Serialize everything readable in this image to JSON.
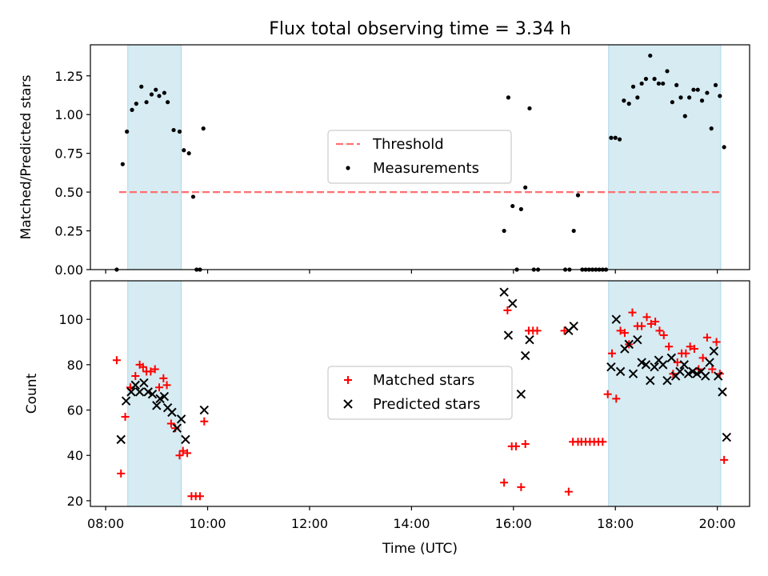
{
  "chart_data": [
    {
      "type": "scatter",
      "title": "Flux total observing time = 3.34 h",
      "xlabel": "",
      "ylabel": "Matched/Predicted stars",
      "xlim": [
        "07:42",
        "20:38"
      ],
      "ylim": [
        0,
        1.45
      ],
      "yticks": [
        0.0,
        0.25,
        0.5,
        0.75,
        1.0,
        1.25
      ],
      "ytick_labels": [
        "0.00",
        "0.25",
        "0.50",
        "0.75",
        "1.00",
        "1.25"
      ],
      "shaded_intervals": [
        [
          "08:26",
          "09:29"
        ],
        [
          "17:52",
          "20:04"
        ]
      ],
      "threshold": {
        "name": "Threshold",
        "value": 0.5,
        "color": "#ff7070"
      },
      "legend": {
        "position": "center",
        "entries": [
          "Threshold",
          "Measurements"
        ]
      },
      "series": [
        {
          "name": "Measurements",
          "marker": "dot",
          "color": "#000000",
          "points": [
            [
              "08:13",
              0.0
            ],
            [
              "08:20",
              0.68
            ],
            [
              "08:25",
              0.89
            ],
            [
              "08:31",
              1.03
            ],
            [
              "08:36",
              1.07
            ],
            [
              "08:42",
              1.18
            ],
            [
              "08:48",
              1.08
            ],
            [
              "08:54",
              1.13
            ],
            [
              "08:59",
              1.16
            ],
            [
              "09:03",
              1.12
            ],
            [
              "09:09",
              1.14
            ],
            [
              "09:13",
              1.08
            ],
            [
              "09:20",
              0.9
            ],
            [
              "09:27",
              0.89
            ],
            [
              "09:32",
              0.77
            ],
            [
              "09:38",
              0.75
            ],
            [
              "09:43",
              0.47
            ],
            [
              "09:47",
              0.0
            ],
            [
              "09:51",
              0.0
            ],
            [
              "09:55",
              0.91
            ],
            [
              "15:49",
              0.25
            ],
            [
              "15:54",
              1.11
            ],
            [
              "15:59",
              0.41
            ],
            [
              "16:04",
              0.0
            ],
            [
              "16:09",
              0.39
            ],
            [
              "16:14",
              0.53
            ],
            [
              "16:19",
              1.04
            ],
            [
              "16:24",
              0.0
            ],
            [
              "16:29",
              0.0
            ],
            [
              "17:01",
              0.0
            ],
            [
              "17:06",
              0.0
            ],
            [
              "17:11",
              0.25
            ],
            [
              "17:16",
              0.48
            ],
            [
              "17:21",
              0.0
            ],
            [
              "17:25",
              0.0
            ],
            [
              "17:29",
              0.0
            ],
            [
              "17:33",
              0.0
            ],
            [
              "17:37",
              0.0
            ],
            [
              "17:41",
              0.0
            ],
            [
              "17:45",
              0.0
            ],
            [
              "17:49",
              0.0
            ],
            [
              "17:55",
              0.85
            ],
            [
              "18:00",
              0.85
            ],
            [
              "18:05",
              0.84
            ],
            [
              "18:10",
              1.09
            ],
            [
              "18:16",
              1.07
            ],
            [
              "18:21",
              1.18
            ],
            [
              "18:26",
              1.11
            ],
            [
              "18:31",
              1.2
            ],
            [
              "18:36",
              1.23
            ],
            [
              "18:41",
              1.38
            ],
            [
              "18:46",
              1.23
            ],
            [
              "18:51",
              1.2
            ],
            [
              "18:56",
              1.2
            ],
            [
              "19:01",
              1.28
            ],
            [
              "19:07",
              1.08
            ],
            [
              "19:12",
              1.19
            ],
            [
              "19:17",
              1.11
            ],
            [
              "19:22",
              0.99
            ],
            [
              "19:27",
              1.11
            ],
            [
              "19:32",
              1.16
            ],
            [
              "19:37",
              1.16
            ],
            [
              "19:42",
              1.09
            ],
            [
              "19:48",
              1.14
            ],
            [
              "19:53",
              0.91
            ],
            [
              "19:58",
              1.19
            ],
            [
              "20:03",
              1.12
            ],
            [
              "20:08",
              0.79
            ]
          ]
        }
      ]
    },
    {
      "type": "scatter",
      "title": "",
      "xlabel": "Time (UTC)",
      "ylabel": "Count",
      "xlim": [
        "07:42",
        "20:38"
      ],
      "ylim": [
        17.5,
        117
      ],
      "yticks": [
        20,
        40,
        60,
        80,
        100
      ],
      "ytick_labels": [
        "20",
        "40",
        "60",
        "80",
        "100"
      ],
      "xticks": [
        "08:00",
        "10:00",
        "12:00",
        "14:00",
        "16:00",
        "18:00",
        "20:00"
      ],
      "xtick_labels": [
        "08:00",
        "10:00",
        "12:00",
        "14:00",
        "16:00",
        "18:00",
        "20:00"
      ],
      "shaded_intervals": [
        [
          "08:26",
          "09:29"
        ],
        [
          "17:52",
          "20:04"
        ]
      ],
      "legend": {
        "position": "center",
        "entries": [
          "Matched stars",
          "Predicted stars"
        ]
      },
      "series": [
        {
          "name": "Matched stars",
          "marker": "plus",
          "color": "#ff0000",
          "points": [
            [
              "08:13",
              82
            ],
            [
              "08:18",
              32
            ],
            [
              "08:23",
              57
            ],
            [
              "08:29",
              70
            ],
            [
              "08:35",
              75
            ],
            [
              "08:40",
              80
            ],
            [
              "08:44",
              79
            ],
            [
              "08:48",
              77
            ],
            [
              "08:53",
              77
            ],
            [
              "08:58",
              78
            ],
            [
              "09:03",
              70
            ],
            [
              "09:08",
              74
            ],
            [
              "09:12",
              71
            ],
            [
              "09:17",
              54
            ],
            [
              "09:22",
              52
            ],
            [
              "09:27",
              40
            ],
            [
              "09:31",
              42
            ],
            [
              "09:36",
              41
            ],
            [
              "09:41",
              22
            ],
            [
              "09:46",
              22
            ],
            [
              "09:51",
              22
            ],
            [
              "09:56",
              55
            ],
            [
              "15:49",
              28
            ],
            [
              "15:53",
              104
            ],
            [
              "15:58",
              44
            ],
            [
              "16:03",
              44
            ],
            [
              "16:09",
              26
            ],
            [
              "16:14",
              45
            ],
            [
              "16:18",
              95
            ],
            [
              "16:23",
              95
            ],
            [
              "16:28",
              95
            ],
            [
              "17:00",
              95
            ],
            [
              "17:05",
              24
            ],
            [
              "17:10",
              46
            ],
            [
              "17:16",
              46
            ],
            [
              "17:20",
              46
            ],
            [
              "17:25",
              46
            ],
            [
              "17:30",
              46
            ],
            [
              "17:35",
              46
            ],
            [
              "17:40",
              46
            ],
            [
              "17:45",
              46
            ],
            [
              "17:51",
              67
            ],
            [
              "17:56",
              85
            ],
            [
              "18:01",
              65
            ],
            [
              "18:06",
              95
            ],
            [
              "18:11",
              94
            ],
            [
              "18:16",
              89
            ],
            [
              "18:20",
              103
            ],
            [
              "18:26",
              97
            ],
            [
              "18:31",
              97
            ],
            [
              "18:37",
              101
            ],
            [
              "18:42",
              98
            ],
            [
              "18:47",
              99
            ],
            [
              "18:52",
              95
            ],
            [
              "18:57",
              93
            ],
            [
              "19:03",
              88
            ],
            [
              "19:08",
              76
            ],
            [
              "19:13",
              81
            ],
            [
              "19:18",
              85
            ],
            [
              "19:23",
              85
            ],
            [
              "19:28",
              88
            ],
            [
              "19:33",
              87
            ],
            [
              "19:38",
              78
            ],
            [
              "19:43",
              83
            ],
            [
              "19:48",
              92
            ],
            [
              "19:54",
              78
            ],
            [
              "19:59",
              90
            ],
            [
              "20:03",
              76
            ],
            [
              "20:08",
              38
            ]
          ]
        },
        {
          "name": "Predicted stars",
          "marker": "x",
          "color": "#000000",
          "points": [
            [
              "08:18",
              47
            ],
            [
              "08:24",
              64
            ],
            [
              "08:30",
              68
            ],
            [
              "08:35",
              71
            ],
            [
              "08:40",
              68
            ],
            [
              "08:45",
              72
            ],
            [
              "08:50",
              68
            ],
            [
              "08:55",
              67
            ],
            [
              "09:00",
              62
            ],
            [
              "09:04",
              65
            ],
            [
              "09:09",
              66
            ],
            [
              "09:13",
              61
            ],
            [
              "09:18",
              59
            ],
            [
              "09:24",
              52
            ],
            [
              "09:29",
              56
            ],
            [
              "09:34",
              47
            ],
            [
              "09:56",
              60
            ],
            [
              "15:49",
              112
            ],
            [
              "15:54",
              93
            ],
            [
              "15:59",
              107
            ],
            [
              "16:09",
              67
            ],
            [
              "16:14",
              84
            ],
            [
              "16:19",
              91
            ],
            [
              "17:05",
              95
            ],
            [
              "17:11",
              97
            ],
            [
              "17:55",
              79
            ],
            [
              "18:01",
              100
            ],
            [
              "18:06",
              77
            ],
            [
              "18:11",
              87
            ],
            [
              "18:16",
              89
            ],
            [
              "18:21",
              76
            ],
            [
              "18:26",
              91
            ],
            [
              "18:31",
              81
            ],
            [
              "18:36",
              80
            ],
            [
              "18:41",
              73
            ],
            [
              "18:46",
              79
            ],
            [
              "18:51",
              82
            ],
            [
              "18:56",
              80
            ],
            [
              "19:01",
              73
            ],
            [
              "19:06",
              83
            ],
            [
              "19:11",
              75
            ],
            [
              "19:16",
              77
            ],
            [
              "19:21",
              80
            ],
            [
              "19:26",
              76
            ],
            [
              "19:31",
              77
            ],
            [
              "19:36",
              76
            ],
            [
              "19:41",
              77
            ],
            [
              "19:46",
              75
            ],
            [
              "19:51",
              81
            ],
            [
              "19:56",
              86
            ],
            [
              "20:01",
              75
            ],
            [
              "20:06",
              68
            ],
            [
              "20:11",
              48
            ]
          ]
        }
      ]
    }
  ]
}
